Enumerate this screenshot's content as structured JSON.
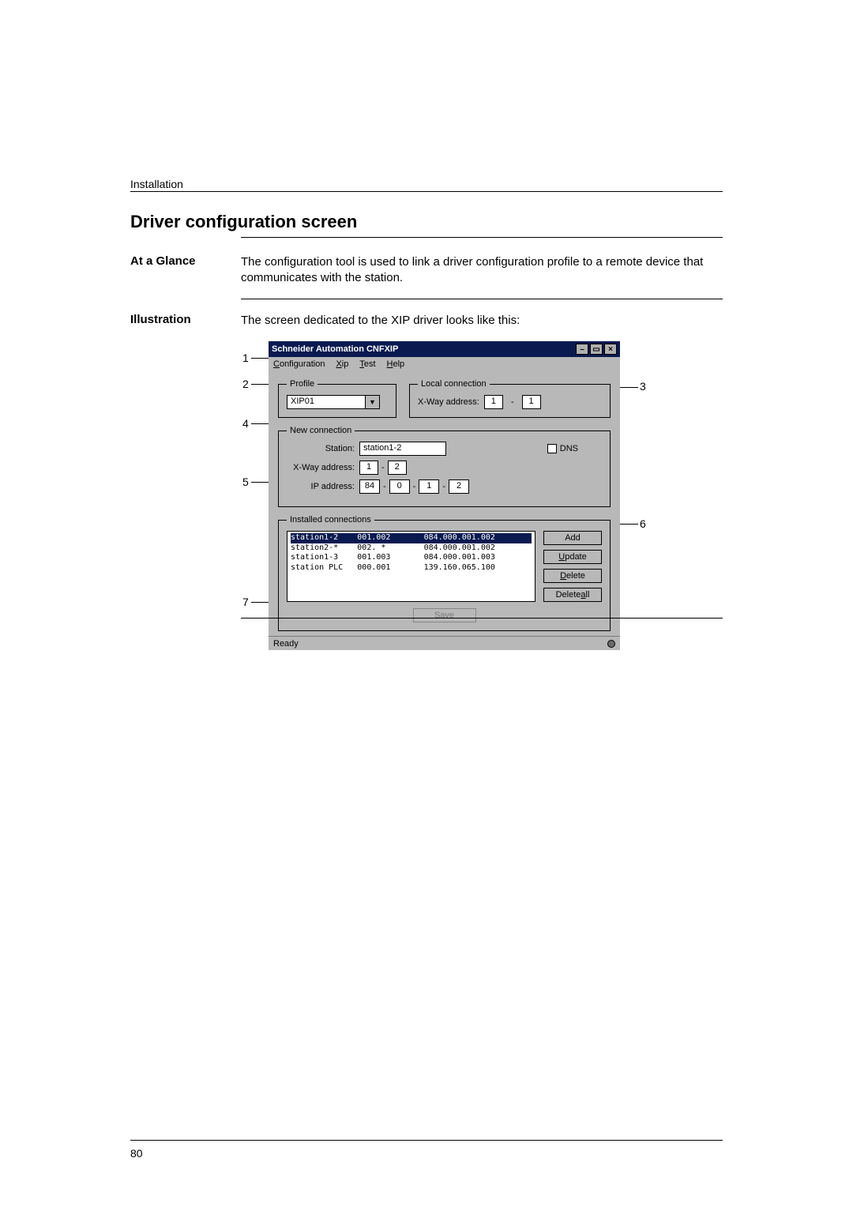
{
  "header": "Installation",
  "title": "Driver configuration screen",
  "at_a_glance": {
    "label": "At a Glance",
    "text": "The configuration tool is used to link a driver configuration profile to a remote device that communicates with the station."
  },
  "illustration": {
    "label": "Illustration",
    "lead": "The screen dedicated to the XIP driver looks like this:"
  },
  "window": {
    "title": "Schneider Automation CNFXIP",
    "menu": {
      "config": "Configuration",
      "xip": "Xip",
      "test": "Test",
      "help": "Help"
    },
    "profile": {
      "legend": "Profile",
      "value": "XIP01"
    },
    "local": {
      "legend": "Local connection",
      "xway_label": "X-Way address:",
      "xway_a": "1",
      "xway_b": "1"
    },
    "newconn": {
      "legend": "New connection",
      "station_label": "Station:",
      "station_value": "station1-2",
      "dns_label": "DNS",
      "xway_label": "X-Way address:",
      "xway_a": "1",
      "xway_b": "2",
      "ip_label": "IP address:",
      "ip": [
        "84",
        "0",
        "1",
        "2"
      ]
    },
    "installed": {
      "legend": "Installed connections",
      "rows": [
        {
          "name": "station1-2",
          "code": "001.002",
          "ip": "084.000.001.002",
          "selected": true
        },
        {
          "name": "station2-*",
          "code": "002. *",
          "ip": "084.000.001.002",
          "selected": false
        },
        {
          "name": "station1-3",
          "code": "001.003",
          "ip": "084.000.001.003",
          "selected": false
        },
        {
          "name": "station PLC",
          "code": "000.001",
          "ip": "139.160.065.100",
          "selected": false
        }
      ],
      "buttons": {
        "add": "Add",
        "update": "Update",
        "delete": "Delete",
        "delete_all": "Delete all"
      }
    },
    "save": "Save",
    "status": "Ready"
  },
  "callouts": {
    "n1": "1",
    "n2": "2",
    "n3": "3",
    "n4": "4",
    "n5": "5",
    "n6": "6",
    "n7": "7"
  },
  "page_number": "80"
}
